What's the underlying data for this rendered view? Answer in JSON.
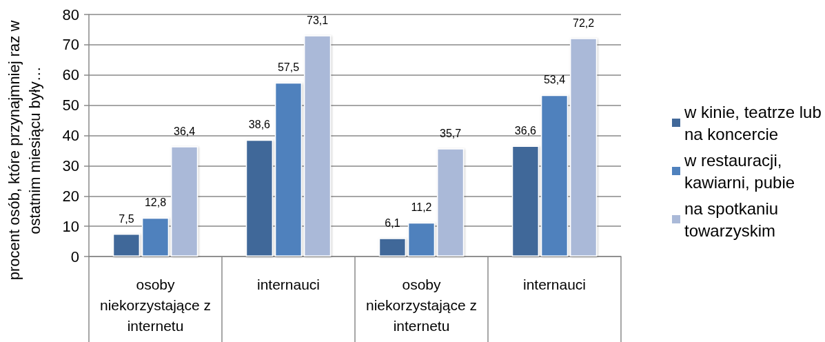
{
  "chart_data": {
    "type": "bar",
    "ylabel": "procent osób, które przynajmniej raz w ostatnim miesiącu były…",
    "categories": [
      "osoby niekorzystające z internetu",
      "internauci",
      "osoby niekorzystające z internetu",
      "internauci"
    ],
    "series": [
      {
        "name": "w kinie, teatrze lub na koncercie",
        "color": "#416899",
        "values": [
          7.5,
          38.6,
          6.1,
          36.6
        ],
        "value_labels": [
          "7,5",
          "38,6",
          "6,1",
          "36,6"
        ]
      },
      {
        "name": "w restauracji, kawiarni, pubie",
        "color": "#4f81bd",
        "values": [
          12.8,
          57.5,
          11.2,
          53.4
        ],
        "value_labels": [
          "12,8",
          "57,5",
          "11,2",
          "53,4"
        ]
      },
      {
        "name": "na spotkaniu towarzyskim",
        "color": "#aab9d8",
        "values": [
          36.4,
          73.1,
          35.7,
          72.2
        ],
        "value_labels": [
          "36,4",
          "73,1",
          "35,7",
          "72,2"
        ]
      }
    ],
    "ylim": [
      0,
      80
    ],
    "yticks": [
      0,
      10,
      20,
      30,
      40,
      50,
      60,
      70,
      80
    ],
    "grid": "y",
    "legend": "right"
  }
}
